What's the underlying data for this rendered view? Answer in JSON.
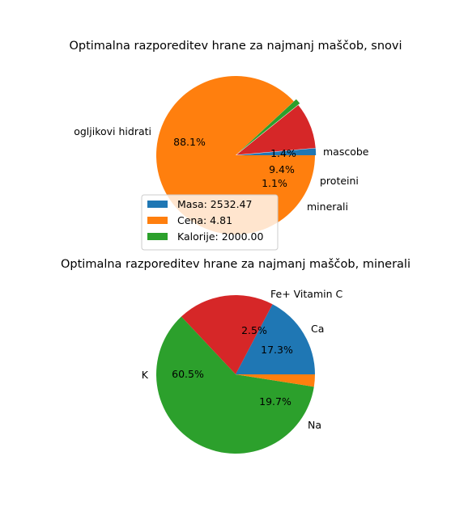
{
  "chart_data": [
    {
      "type": "pie",
      "title": "Optimalna razporeditev hrane za najmanj maščob, snovi",
      "labels": [
        "mascobe",
        "proteini",
        "minerali",
        "ogljikovi hidrati"
      ],
      "values": [
        1.4,
        9.4,
        1.1,
        88.1
      ],
      "pct_labels": [
        "1.4%",
        "9.4%",
        "1.1%",
        "88.1%"
      ],
      "colors": [
        "#1f77b4",
        "#d62728",
        "#2ca02c",
        "#ff7f0e"
      ],
      "legend": {
        "placement": "lower-left",
        "entries": [
          {
            "label": "Masa: 2532.47",
            "color": "#1f77b4"
          },
          {
            "label": "Cena: 4.81",
            "color": "#ff7f0e"
          },
          {
            "label": "Kalorije: 2000.00",
            "color": "#2ca02c"
          }
        ]
      }
    },
    {
      "type": "pie",
      "title": "Optimalna razporeditev hrane za najmanj maščob, minerali",
      "labels": [
        "Ca",
        "Na",
        "K",
        "Fe+ Vitamin C"
      ],
      "values": [
        17.3,
        19.7,
        60.5,
        2.5
      ],
      "pct_labels": [
        "17.3%",
        "19.7%",
        "60.5%",
        "2.5%"
      ],
      "colors": [
        "#1f77b4",
        "#d62728",
        "#2ca02c",
        "#ff7f0e"
      ]
    }
  ]
}
